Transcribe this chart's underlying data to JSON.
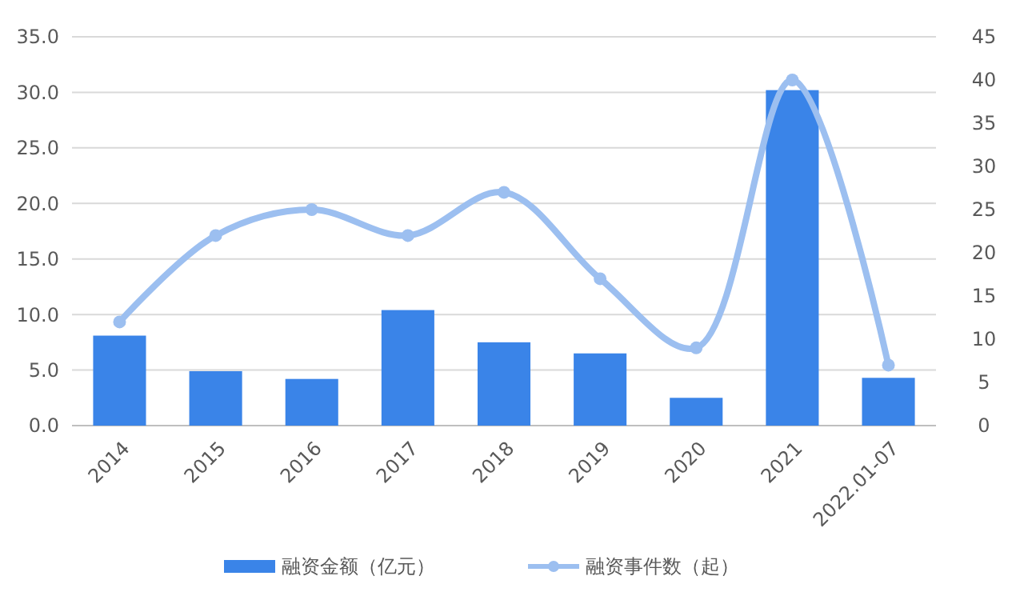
{
  "chart_data": {
    "type": "bar",
    "categories": [
      "2014",
      "2015",
      "2016",
      "2017",
      "2018",
      "2019",
      "2020",
      "2021",
      "2022.01-07"
    ],
    "series": [
      {
        "name": "融资金额（亿元）",
        "color": "#3a84e8",
        "values": [
          8.1,
          4.9,
          4.2,
          10.4,
          7.5,
          6.5,
          2.5,
          30.2,
          4.3
        ]
      },
      {
        "name": "融资事件数（起）",
        "type": "line",
        "axis": "y2",
        "color": "#9cbff0",
        "marker": "circle",
        "values": [
          12,
          22,
          25,
          22,
          27,
          17,
          9,
          40,
          7
        ]
      }
    ],
    "ylim": [
      0,
      35
    ],
    "yticks": [
      {
        "value": 0,
        "label": "0.0"
      },
      {
        "value": 5,
        "label": "5.0"
      },
      {
        "value": 10,
        "label": "10.0"
      },
      {
        "value": 15,
        "label": "15.0"
      },
      {
        "value": 20,
        "label": "20.0"
      },
      {
        "value": 25,
        "label": "25.0"
      },
      {
        "value": 30,
        "label": "30.0"
      },
      {
        "value": 35,
        "label": "35.0"
      }
    ],
    "y2lim": [
      0,
      45
    ],
    "y2ticks": [
      0,
      5,
      10,
      15,
      20,
      25,
      30,
      35,
      40,
      45
    ],
    "grid": "y",
    "legend": "bottom"
  }
}
